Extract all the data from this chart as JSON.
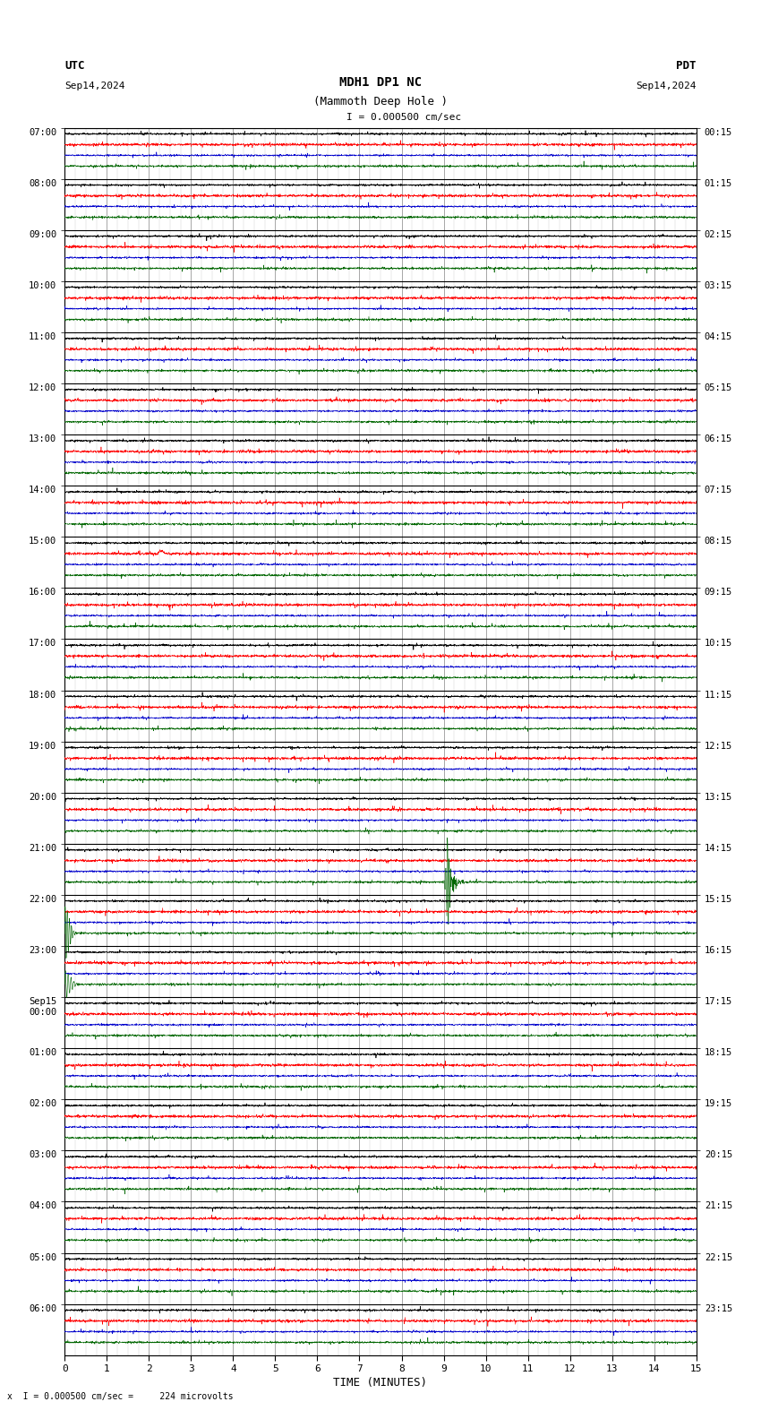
{
  "title_line1": "MDH1 DP1 NC",
  "title_line2": "(Mammoth Deep Hole )",
  "scale_label": "I = 0.000500 cm/sec",
  "utc_label": "UTC",
  "pdt_label": "PDT",
  "date_left": "Sep14,2024",
  "date_right": "Sep14,2024",
  "xlabel": "TIME (MINUTES)",
  "bottom_note": "x  I = 0.000500 cm/sec =     224 microvolts",
  "x_min": 0,
  "x_max": 15,
  "bg_color": "#ffffff",
  "grid_major_color": "#999999",
  "grid_minor_color": "#cccccc",
  "hour_line_color": "#000000",
  "trace_colors": [
    "#ff0000",
    "#0000cc",
    "#006600"
  ],
  "black_trace_color": "#000000",
  "num_rows": 24,
  "utc_times": [
    "07:00",
    "08:00",
    "09:00",
    "10:00",
    "11:00",
    "12:00",
    "13:00",
    "14:00",
    "15:00",
    "16:00",
    "17:00",
    "18:00",
    "19:00",
    "20:00",
    "21:00",
    "22:00",
    "23:00",
    "Sep15\n00:00",
    "01:00",
    "02:00",
    "03:00",
    "04:00",
    "05:00",
    "06:00"
  ],
  "pdt_times": [
    "00:15",
    "01:15",
    "02:15",
    "03:15",
    "04:15",
    "05:15",
    "06:15",
    "07:15",
    "08:15",
    "09:15",
    "10:15",
    "11:15",
    "12:15",
    "13:15",
    "14:15",
    "15:15",
    "16:15",
    "17:15",
    "18:15",
    "19:15",
    "20:15",
    "21:15",
    "22:15",
    "23:15"
  ],
  "noise_amplitude": 0.008,
  "noise_seed": 12345,
  "event_row": 14,
  "event_minute": 9.1,
  "event_amplitude_green": 1.8,
  "event_amplitude_coda": 0.6,
  "small_event_row": 8,
  "small_event_minute": 2.3,
  "small_event_amp": 0.05
}
